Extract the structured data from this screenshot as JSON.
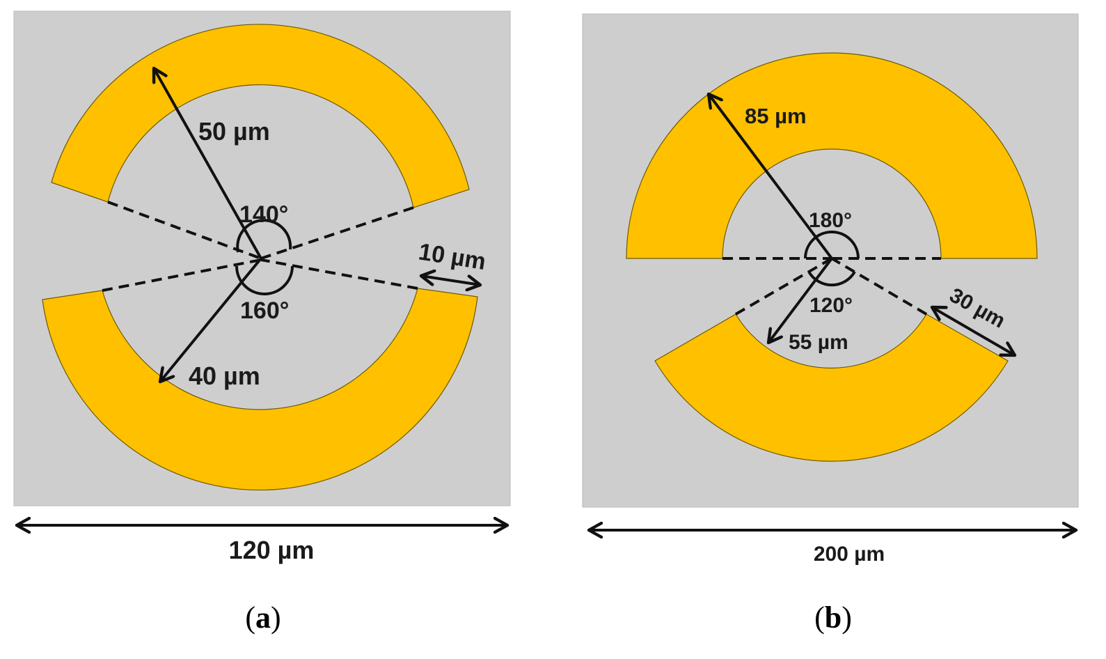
{
  "colors": {
    "substrate": "#cfcecf",
    "metal": "#ffc000",
    "outline": "#6b5a00",
    "ink": "#111111"
  },
  "panel_a": {
    "outer_radius": "50 µm",
    "inner_radius": "40 µm",
    "angle_top": "140°",
    "angle_bottom": "160°",
    "gap": "10 µm",
    "width": "120 µm",
    "caption_open": "(",
    "caption_letter": "a",
    "caption_close": ")"
  },
  "panel_b": {
    "outer_radius": "85 µm",
    "inner_radius": "55 µm",
    "angle_top": "180°",
    "angle_bottom": "120°",
    "gap": "30 µm",
    "width": "200 µm",
    "caption_open": "(",
    "caption_letter": "b",
    "caption_close": ")"
  }
}
